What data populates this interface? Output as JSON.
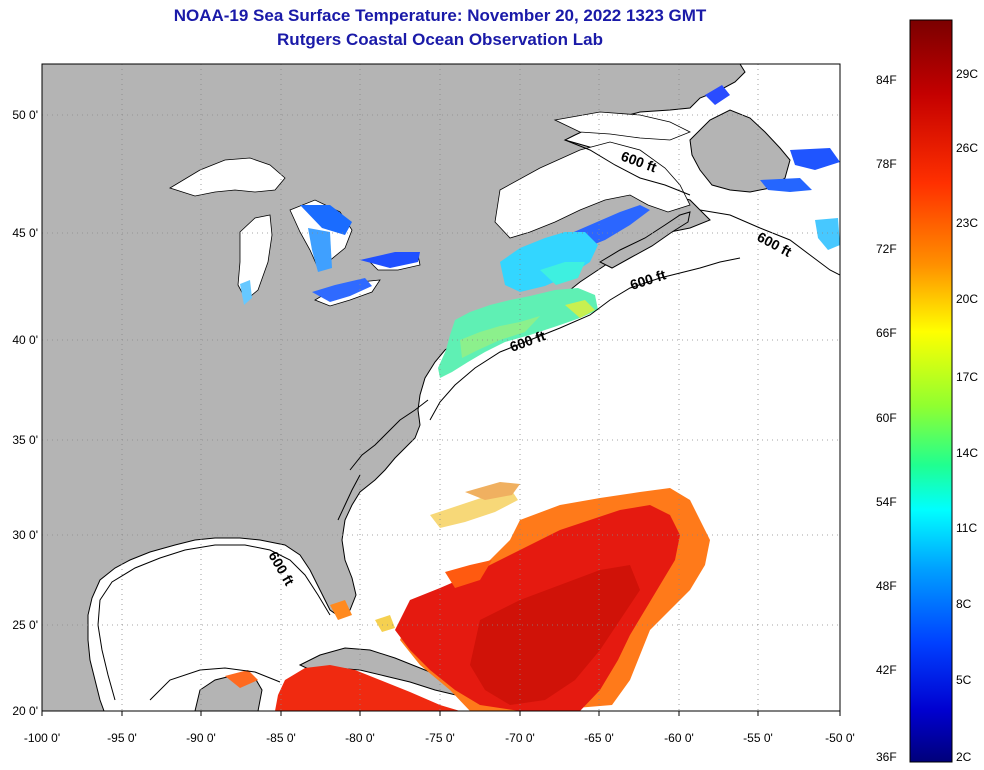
{
  "title": {
    "line1": "NOAA-19 Sea Surface Temperature:  November 20, 2022 1323 GMT",
    "line2": "Rutgers Coastal Ocean Observation Lab"
  },
  "map": {
    "lon_range": [
      -100,
      -50
    ],
    "lat_range": [
      20,
      52.5
    ],
    "lon_ticks": [
      "-100 0'",
      "-95 0'",
      "-90 0'",
      "-85 0'",
      "-80 0'",
      "-75 0'",
      "-70 0'",
      "-65 0'",
      "-60 0'",
      "-55 0'",
      "-50 0'"
    ],
    "lat_ticks": [
      "20 0'",
      "25 0'",
      "30 0'",
      "35 0'",
      "40 0'",
      "45 0'",
      "50 0'"
    ],
    "grid": "dotted",
    "land_color": "#b4b4b4",
    "ocean_nodata_color": "#ffffff",
    "contour_labels": [
      "600 ft",
      "600 ft",
      "600 ft",
      "600 ft",
      "600 ft"
    ]
  },
  "colorbar": {
    "fahrenheit_labels": [
      "84F",
      "78F",
      "72F",
      "66F",
      "60F",
      "54F",
      "48F",
      "42F",
      "36F"
    ],
    "celsius_labels": [
      "29C",
      "26C",
      "23C",
      "20C",
      "17C",
      "14C",
      "11C",
      "8C",
      "5C",
      "2C"
    ],
    "colors": [
      "#7a0000",
      "#d40000",
      "#ff5000",
      "#ffb000",
      "#ffff00",
      "#80ff40",
      "#00ffff",
      "#0080ff",
      "#0000ff",
      "#00007a"
    ]
  }
}
